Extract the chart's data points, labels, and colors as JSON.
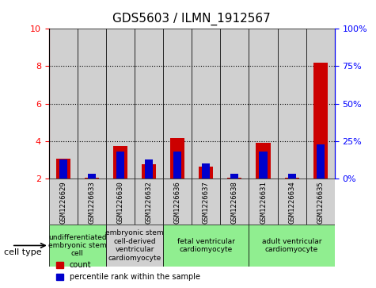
{
  "title": "GDS5603 / ILMN_1912567",
  "samples": [
    "GSM1226629",
    "GSM1226633",
    "GSM1226630",
    "GSM1226632",
    "GSM1226636",
    "GSM1226637",
    "GSM1226638",
    "GSM1226631",
    "GSM1226634",
    "GSM1226635"
  ],
  "count_values": [
    3.05,
    2.05,
    3.75,
    2.75,
    4.15,
    2.65,
    2.05,
    3.9,
    2.05,
    8.2
  ],
  "percentile_values": [
    13,
    3,
    18,
    13,
    18,
    10,
    3,
    18,
    3,
    23
  ],
  "ylim_left": [
    2,
    10
  ],
  "ylim_right": [
    0,
    100
  ],
  "yticks_left": [
    2,
    4,
    6,
    8,
    10
  ],
  "yticks_right": [
    0,
    25,
    50,
    75,
    100
  ],
  "ytick_labels_right": [
    "0%",
    "25%",
    "50%",
    "75%",
    "100%"
  ],
  "cell_type_groups": [
    {
      "label": "undifferentiated\nembryonic stem\ncell",
      "start": 0,
      "end": 2,
      "color": "#90EE90"
    },
    {
      "label": "embryonic stem\ncell-derived\nventricular\ncardiomyocyte",
      "start": 2,
      "end": 4,
      "color": "#d0d0d0"
    },
    {
      "label": "fetal ventricular\ncardiomyocyte",
      "start": 4,
      "end": 7,
      "color": "#90EE90"
    },
    {
      "label": "adult ventricular\ncardiomyocyte",
      "start": 7,
      "end": 10,
      "color": "#90EE90"
    }
  ],
  "count_color": "#cc0000",
  "percentile_color": "#0000cc",
  "sample_bg_color": "#d0d0d0",
  "baseline": 2
}
